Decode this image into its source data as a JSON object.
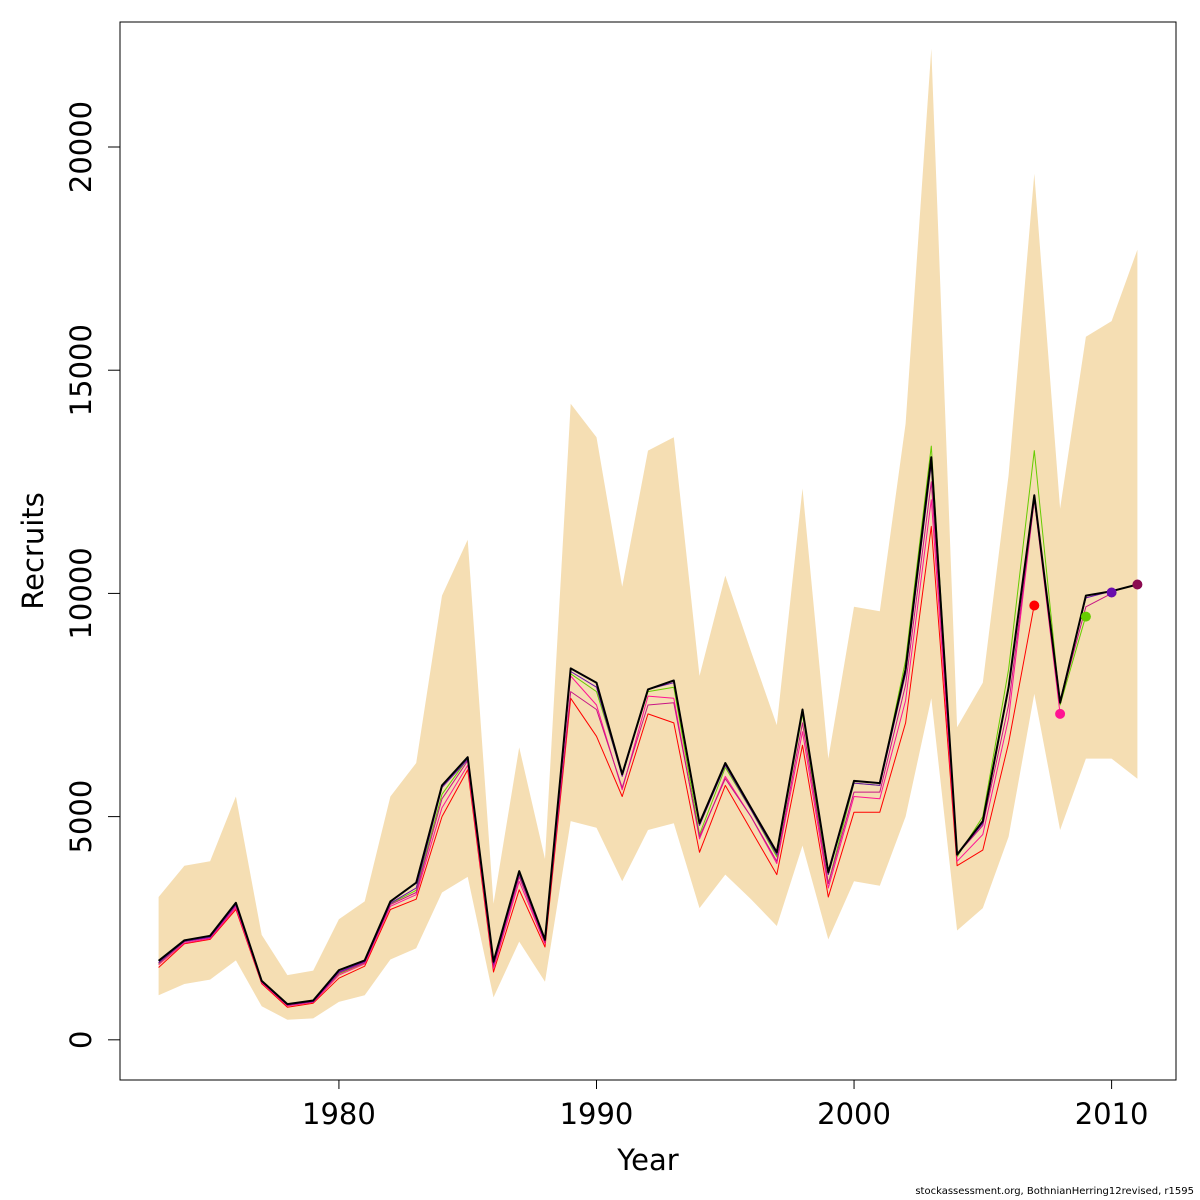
{
  "chart_data": {
    "type": "line",
    "xlabel": "Year",
    "ylabel": "Recruits",
    "xlim": [
      1971.5,
      2012.5
    ],
    "ylim": [
      -900,
      22800
    ],
    "x_ticks": [
      1980,
      1990,
      2000,
      2010
    ],
    "y_ticks": [
      0,
      5000,
      10000,
      15000,
      20000
    ],
    "x_tick_labels": [
      "1980",
      "1990",
      "2000",
      "2010"
    ],
    "y_tick_labels": [
      "0",
      "5000",
      "10000",
      "15000",
      "20000"
    ],
    "grid": false,
    "legend": "none",
    "band_color": "#f5deb3",
    "years": [
      1973,
      1974,
      1975,
      1976,
      1977,
      1978,
      1979,
      1980,
      1981,
      1982,
      1983,
      1984,
      1985,
      1986,
      1987,
      1988,
      1989,
      1990,
      1991,
      1992,
      1993,
      1994,
      1995,
      1996,
      1997,
      1998,
      1999,
      2000,
      2001,
      2002,
      2003,
      2004,
      2005,
      2006,
      2007,
      2008,
      2009,
      2010,
      2011
    ],
    "band_upper": [
      3200,
      3900,
      4000,
      5450,
      2350,
      1450,
      1550,
      2700,
      3100,
      5450,
      6200,
      9950,
      11200,
      3050,
      6550,
      4050,
      14250,
      13500,
      10150,
      13200,
      13500,
      8150,
      10400,
      8700,
      7050,
      12350,
      6300,
      9700,
      9600,
      13800,
      22200,
      7000,
      8000,
      12650,
      19400,
      11900,
      15750,
      16100,
      17700
    ],
    "band_lower": [
      1000,
      1250,
      1350,
      1780,
      750,
      450,
      480,
      850,
      1000,
      1800,
      2050,
      3300,
      3650,
      950,
      2200,
      1300,
      4900,
      4750,
      3550,
      4700,
      4850,
      2950,
      3700,
      3150,
      2550,
      4350,
      2250,
      3550,
      3450,
      5000,
      7650,
      2450,
      2950,
      4550,
      7750,
      4700,
      6300,
      6300,
      5850
    ],
    "series": [
      {
        "color": "#ff0000",
        "width": 1,
        "values": [
          1620,
          2150,
          2250,
          2920,
          1260,
          730,
          820,
          1380,
          1650,
          2920,
          3150,
          5000,
          6050,
          1520,
          3360,
          2080,
          7650,
          6800,
          5450,
          7300,
          7100,
          4200,
          5700,
          4700,
          3700,
          6600,
          3200,
          5100,
          5100,
          7100,
          11500,
          3900,
          4250,
          6650,
          9750,
          null,
          null,
          null,
          null
        ]
      },
      {
        "color": "#66cc00",
        "width": 1,
        "values": [
          1700,
          2200,
          2300,
          3050,
          1300,
          780,
          850,
          1480,
          1720,
          3050,
          3350,
          5500,
          6300,
          1680,
          3700,
          2200,
          8200,
          7800,
          5950,
          7800,
          7900,
          4600,
          6100,
          5150,
          4100,
          7300,
          3500,
          5750,
          5700,
          8500,
          13300,
          4100,
          5000,
          8300,
          13200,
          7500,
          9500,
          null,
          null
        ]
      },
      {
        "color": "#ff1493",
        "width": 1,
        "values": [
          1680,
          2170,
          2270,
          2960,
          1280,
          760,
          840,
          1450,
          1700,
          2990,
          3250,
          5200,
          6150,
          1600,
          3550,
          2150,
          8150,
          7500,
          5600,
          7700,
          7650,
          4500,
          5900,
          5000,
          3950,
          6900,
          3400,
          5450,
          5400,
          7600,
          12100,
          4000,
          4600,
          7200,
          12100,
          7300,
          null,
          null,
          null
        ]
      },
      {
        "color": "#c71585",
        "width": 1,
        "values": [
          1720,
          2200,
          2290,
          3000,
          1300,
          770,
          850,
          1500,
          1730,
          3030,
          3300,
          5400,
          6250,
          1650,
          3650,
          2180,
          7800,
          7400,
          5650,
          7500,
          7550,
          4550,
          5850,
          5000,
          4000,
          7100,
          3500,
          5550,
          5550,
          7950,
          12500,
          4150,
          4800,
          7500,
          12100,
          7550,
          9700,
          10000,
          null
        ]
      },
      {
        "color": "#6a0dad",
        "width": 1,
        "values": [
          1730,
          2210,
          2300,
          3030,
          1310,
          790,
          860,
          1520,
          1750,
          3060,
          3400,
          5650,
          6280,
          1700,
          3720,
          2220,
          8250,
          7900,
          5900,
          7850,
          8000,
          4800,
          6150,
          5150,
          4150,
          7350,
          3700,
          5750,
          5700,
          8200,
          12900,
          4150,
          4850,
          7900,
          12200,
          7600,
          9900,
          10050,
          10200
        ]
      },
      {
        "color": "#000000",
        "width": 2,
        "values": [
          1770,
          2230,
          2330,
          3070,
          1320,
          800,
          880,
          1560,
          1780,
          3100,
          3520,
          5700,
          6330,
          1750,
          3780,
          2240,
          8320,
          8000,
          5950,
          7850,
          8050,
          4850,
          6200,
          5200,
          4200,
          7400,
          3750,
          5800,
          5750,
          8300,
          13050,
          4150,
          4900,
          7900,
          12200,
          7550,
          9950,
          10050,
          10200
        ]
      }
    ],
    "end_points": [
      {
        "year": 2007,
        "value": 9730,
        "color": "#ff0000"
      },
      {
        "year": 2008,
        "value": 7300,
        "color": "#ff1493"
      },
      {
        "year": 2009,
        "value": 9480,
        "color": "#66cc00"
      },
      {
        "year": 2010,
        "value": 10020,
        "color": "#6a0dad"
      },
      {
        "year": 2011,
        "value": 10200,
        "color": "#8b0a50"
      }
    ]
  },
  "footer": {
    "credit": "stockassessment.org, BothnianHerring12revised, r1595"
  }
}
